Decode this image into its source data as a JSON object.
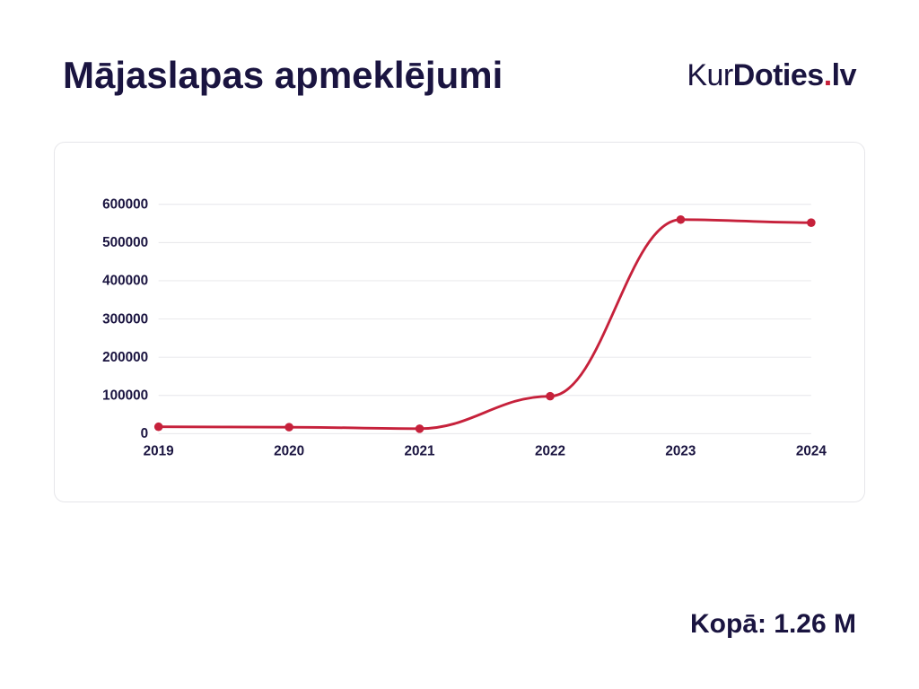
{
  "title": "Mājaslapas apmeklējumi",
  "logo": {
    "part1": "Kur",
    "part2": "Doties",
    "dot": ".",
    "tld": "lv"
  },
  "footer": "Kopā: 1.26 M",
  "chart": {
    "type": "line",
    "background_color": "#ffffff",
    "frame_border_color": "#e6e6ea",
    "frame_border_radius": 12,
    "grid_color": "#e6e6ea",
    "series_color": "#c6213b",
    "series_width": 3,
    "marker_radius": 5,
    "text_color": "#1a1440",
    "label_fontsize": 16,
    "label_fontweight": 700,
    "xlim": [
      2019,
      2024
    ],
    "ylim": [
      0,
      640000
    ],
    "yticks": [
      0,
      100000,
      200000,
      300000,
      400000,
      500000,
      600000
    ],
    "ytick_labels": [
      "0",
      "100000",
      "200000",
      "300000",
      "400000",
      "500000",
      "600000"
    ],
    "xticks": [
      2019,
      2020,
      2021,
      2022,
      2023,
      2024
    ],
    "xtick_labels": [
      "2019",
      "2020",
      "2021",
      "2022",
      "2023",
      "2024"
    ],
    "data": {
      "x": [
        2019,
        2020,
        2021,
        2022,
        2023,
        2024
      ],
      "y": [
        18000,
        17000,
        13000,
        98000,
        560000,
        552000
      ]
    },
    "title_fontsize": 42
  }
}
